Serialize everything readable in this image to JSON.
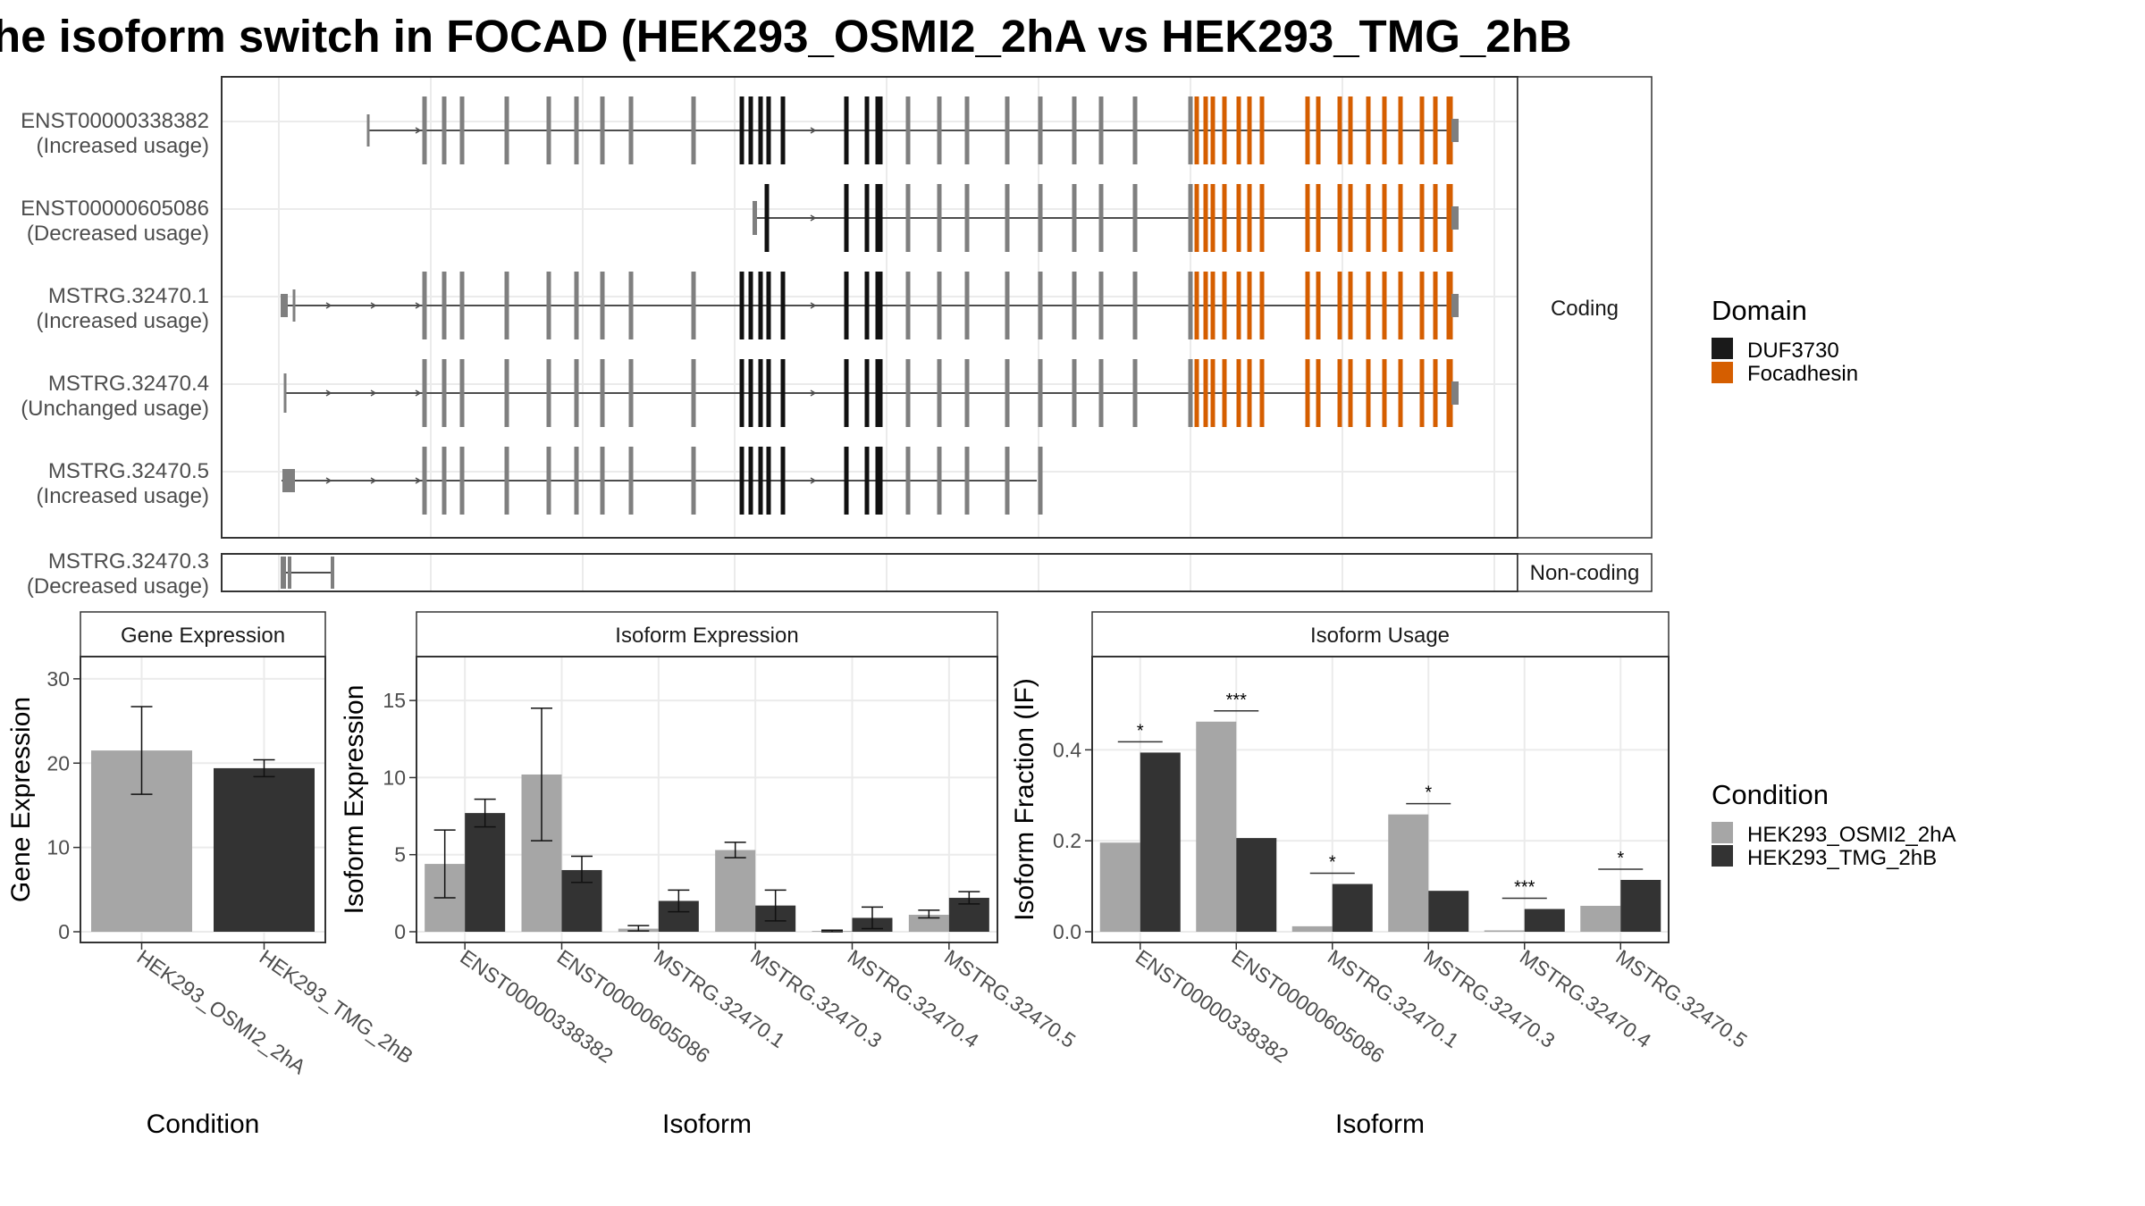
{
  "title": "he isoform switch in FOCAD (HEK293_OSMI2_2hA vs HEK293_TMG_2hB",
  "structure": {
    "groups": [
      {
        "label": "Coding",
        "isoforms": [
          {
            "id": "ENST00000338382",
            "status": "(Increased usage)"
          },
          {
            "id": "ENST00000605086",
            "status": "(Decreased usage)"
          },
          {
            "id": "MSTRG.32470.1",
            "status": "(Increased usage)"
          },
          {
            "id": "MSTRG.32470.4",
            "status": "(Unchanged usage)"
          },
          {
            "id": "MSTRG.32470.5",
            "status": "(Increased usage)"
          }
        ]
      },
      {
        "label": "Non-coding",
        "isoforms": [
          {
            "id": "MSTRG.32470.3",
            "status": "(Decreased usage)"
          }
        ]
      }
    ]
  },
  "domain_legend": {
    "title": "Domain",
    "items": [
      {
        "name": "DUF3730",
        "color": "#1a1a1a"
      },
      {
        "name": "Focadhesin",
        "color": "#d55e00"
      }
    ]
  },
  "condition_legend": {
    "title": "Condition",
    "items": [
      {
        "name": "HEK293_OSMI2_2hA",
        "color": "#a6a6a6"
      },
      {
        "name": "HEK293_TMG_2hB",
        "color": "#333333"
      }
    ]
  },
  "chart_data": [
    {
      "type": "bar",
      "strip": "Gene Expression",
      "xlabel": "Condition",
      "ylabel": "Gene Expression",
      "categories": [
        "HEK293_OSMI2_2hA",
        "HEK293_TMG_2hB"
      ],
      "values": [
        21.5,
        19.4
      ],
      "error_low": [
        16.3,
        18.4
      ],
      "error_high": [
        26.7,
        20.4
      ],
      "yticks": [
        "0",
        "10",
        "20",
        "30"
      ],
      "ylim": [
        0,
        32
      ]
    },
    {
      "type": "bar",
      "strip": "Isoform Expression",
      "xlabel": "Isoform",
      "ylabel": "Isoform Expression",
      "categories": [
        "ENST00000338382",
        "ENST00000605086",
        "MSTRG.32470.1",
        "MSTRG.32470.3",
        "MSTRG.32470.4",
        "MSTRG.32470.5"
      ],
      "series": [
        {
          "name": "HEK293_OSMI2_2hA",
          "values": [
            4.4,
            10.2,
            0.2,
            5.3,
            0.05,
            1.1
          ],
          "error_low": [
            2.2,
            5.9,
            0.05,
            4.8,
            0.0,
            0.9
          ],
          "error_high": [
            6.6,
            14.5,
            0.4,
            5.8,
            0.1,
            1.4
          ]
        },
        {
          "name": "HEK293_TMG_2hB",
          "values": [
            7.7,
            4.0,
            2.0,
            1.7,
            0.9,
            2.2
          ],
          "error_low": [
            6.8,
            3.2,
            1.3,
            0.7,
            0.2,
            1.8
          ],
          "error_high": [
            8.6,
            4.9,
            2.7,
            2.7,
            1.6,
            2.6
          ]
        }
      ],
      "yticks": [
        "0",
        "5",
        "10",
        "15"
      ],
      "ylim": [
        0,
        17.5
      ]
    },
    {
      "type": "bar",
      "strip": "Isoform Usage",
      "xlabel": "Isoform",
      "ylabel": "Isoform Fraction (IF)",
      "categories": [
        "ENST00000338382",
        "ENST00000605086",
        "MSTRG.32470.1",
        "MSTRG.32470.3",
        "MSTRG.32470.4",
        "MSTRG.32470.5"
      ],
      "series": [
        {
          "name": "HEK293_OSMI2_2hA",
          "values": [
            0.196,
            0.462,
            0.012,
            0.258,
            0.003,
            0.057
          ]
        },
        {
          "name": "HEK293_TMG_2hB",
          "values": [
            0.394,
            0.206,
            0.105,
            0.09,
            0.05,
            0.114
          ]
        }
      ],
      "significance": [
        "*",
        "***",
        "*",
        "*",
        "***",
        "*"
      ],
      "yticks": [
        "0.0",
        "0.2",
        "0.4"
      ],
      "ylim": [
        0,
        0.55
      ]
    }
  ]
}
